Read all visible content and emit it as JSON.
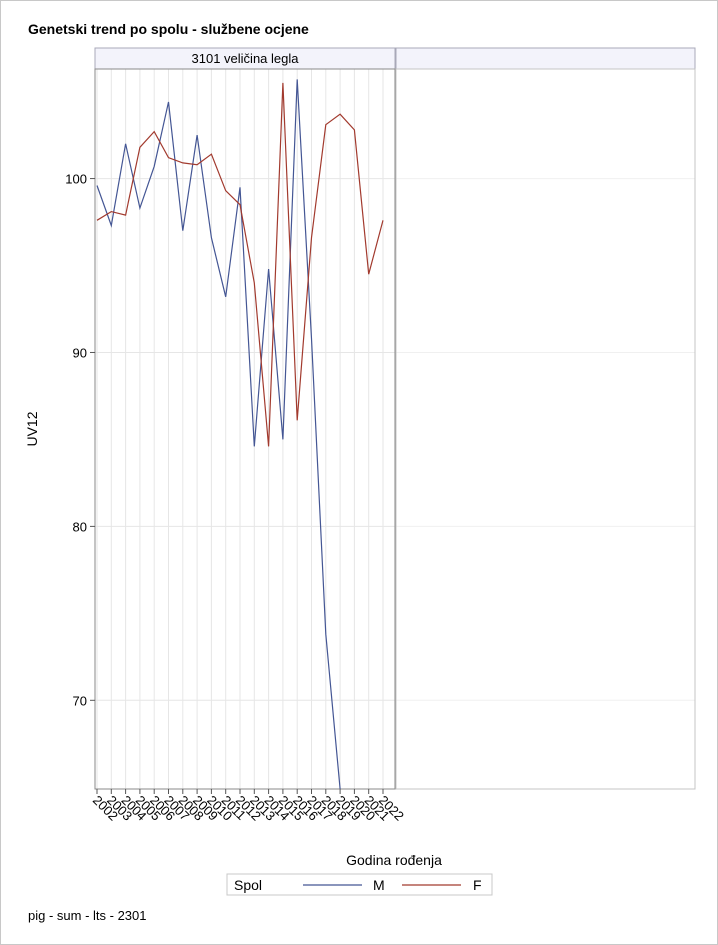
{
  "title": "Genetski trend po spolu - službene ocjene",
  "footer": "pig - sum - lts - 2301",
  "colors": {
    "M": "#445694",
    "F": "#a23a2e",
    "grid": "#e6e6e6",
    "frame": "#8a8a8a"
  },
  "chart_data": {
    "type": "line",
    "panel_label": "3101 veličina legla",
    "xlabel": "Godina rođenja",
    "ylabel": "UV12",
    "categories": [
      "2002",
      "2003",
      "2004",
      "2005",
      "2006",
      "2007",
      "2008",
      "2009",
      "2010",
      "2011",
      "2012",
      "2013",
      "2014",
      "2015",
      "2016",
      "2017",
      "2018",
      "2019",
      "2020",
      "2021",
      "2022"
    ],
    "yticks": [
      70,
      80,
      90,
      100
    ],
    "ylim": [
      64.9,
      106.3
    ],
    "grid": true,
    "legend": {
      "title": "Spol",
      "position": "bottom",
      "entries": [
        "M",
        "F"
      ]
    },
    "series": [
      {
        "name": "M",
        "values": [
          99.6,
          97.3,
          102.0,
          98.3,
          100.7,
          104.4,
          97.0,
          102.5,
          96.6,
          93.2,
          99.5,
          84.6,
          94.8,
          85.0,
          105.7,
          90.8,
          73.8,
          64.9,
          null,
          null,
          null
        ]
      },
      {
        "name": "F",
        "values": [
          97.6,
          98.1,
          97.9,
          101.8,
          102.7,
          101.2,
          100.9,
          100.8,
          101.4,
          99.3,
          98.5,
          94.0,
          84.6,
          105.5,
          86.1,
          96.6,
          103.1,
          103.7,
          102.8,
          94.5,
          97.6
        ]
      }
    ]
  }
}
